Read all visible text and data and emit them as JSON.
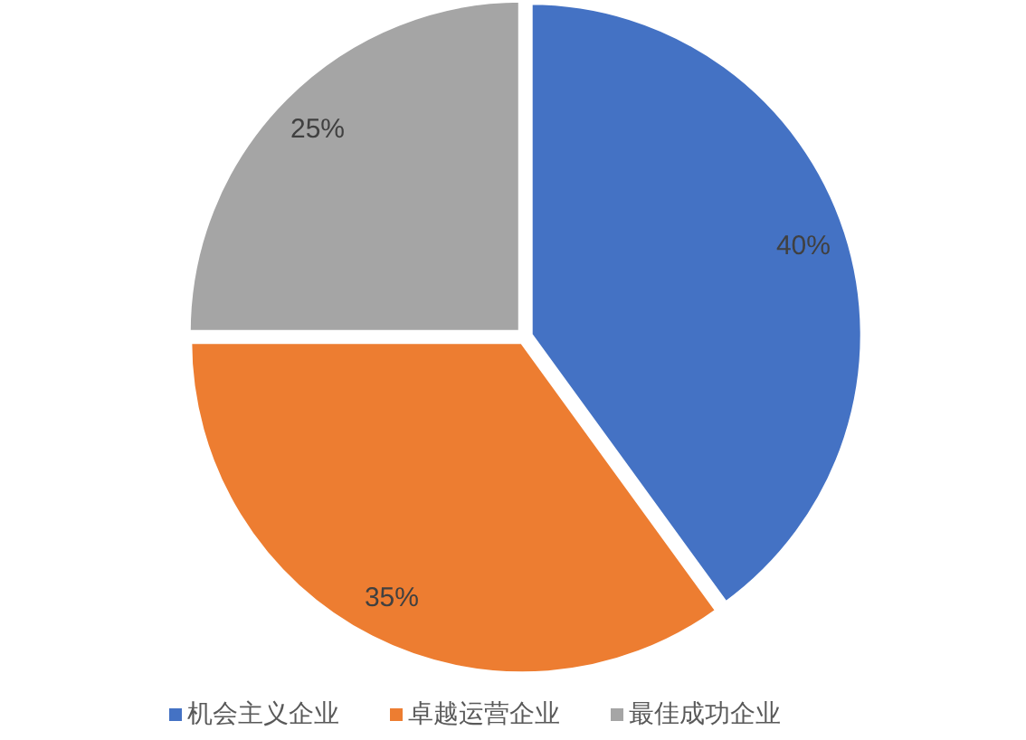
{
  "chart_data": {
    "type": "pie",
    "categories": [
      "机会主义企业",
      "卓越运营企业",
      "最佳成功企业"
    ],
    "values": [
      40,
      35,
      25
    ],
    "colors": [
      "#4472c4",
      "#ed7d31",
      "#a5a5a5"
    ],
    "value_labels": [
      "40%",
      "35%",
      "25%"
    ],
    "legend": "bottom"
  }
}
